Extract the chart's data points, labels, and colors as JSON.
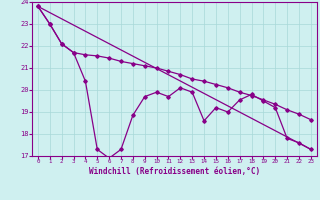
{
  "xlabel": "Windchill (Refroidissement éolien,°C)",
  "xlim": [
    -0.5,
    23.5
  ],
  "ylim": [
    17,
    24
  ],
  "yticks": [
    17,
    18,
    19,
    20,
    21,
    22,
    23,
    24
  ],
  "xticks": [
    0,
    1,
    2,
    3,
    4,
    5,
    6,
    7,
    8,
    9,
    10,
    11,
    12,
    13,
    14,
    15,
    16,
    17,
    18,
    19,
    20,
    21,
    22,
    23
  ],
  "bg_color": "#cff0f0",
  "line_color": "#880088",
  "line1_x": [
    0,
    1,
    2,
    3,
    4,
    5,
    6,
    7,
    8,
    9,
    10,
    11,
    12,
    13,
    14,
    15,
    16,
    17,
    18,
    19,
    20,
    21,
    22,
    23
  ],
  "line1_y": [
    23.8,
    23.0,
    22.1,
    21.7,
    20.4,
    17.3,
    16.9,
    17.3,
    18.85,
    19.7,
    19.9,
    19.7,
    20.1,
    19.9,
    18.6,
    19.2,
    19.0,
    19.55,
    19.8,
    19.5,
    19.2,
    17.8,
    17.6,
    17.3
  ],
  "line2_x": [
    0,
    1,
    2,
    3,
    4,
    5,
    6,
    7,
    8,
    9,
    10,
    11,
    12,
    13,
    14,
    15,
    16,
    17,
    18,
    19,
    20,
    21,
    22,
    23
  ],
  "line2_y": [
    23.8,
    23.0,
    22.1,
    21.7,
    21.6,
    21.55,
    21.45,
    21.3,
    21.2,
    21.1,
    21.0,
    20.85,
    20.7,
    20.5,
    20.4,
    20.25,
    20.1,
    19.9,
    19.75,
    19.55,
    19.35,
    19.1,
    18.9,
    18.65
  ],
  "line3_x": [
    0,
    23
  ],
  "line3_y": [
    23.8,
    17.3
  ]
}
